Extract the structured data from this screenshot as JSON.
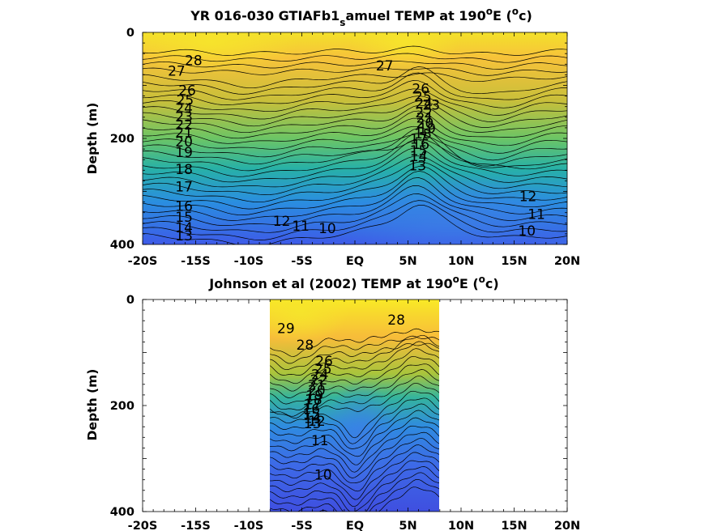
{
  "chart_data": [
    {
      "type": "heatmap",
      "title_main": "YR 016-030 GTIAFb1",
      "title_sub": "s",
      "title_rest": "amuel TEMP at 190",
      "title_sup": "o",
      "title_unit_open": "E (",
      "title_unit_sup": "o",
      "title_unit_close": "c)",
      "ylabel": "Depth (m)",
      "xlabel": "",
      "xlim": [
        -20,
        20
      ],
      "ylim": [
        0,
        400
      ],
      "y_reversed": true,
      "x_ticks": [
        -20,
        -15,
        -10,
        -5,
        0,
        5,
        10,
        15,
        20
      ],
      "x_tick_labels": [
        "-20S",
        "-15S",
        "-10S",
        "-5S",
        "EQ",
        "5N",
        "10N",
        "15N",
        "20N"
      ],
      "y_ticks": [
        0,
        200,
        400
      ],
      "y_tick_labels": [
        "0",
        "200",
        "400"
      ],
      "data_extent_lat": [
        -20,
        20
      ],
      "contour_labels": [
        {
          "text": "28",
          "lat": -15.2,
          "depth": 62
        },
        {
          "text": "27",
          "lat": -16.8,
          "depth": 82
        },
        {
          "text": "27",
          "lat": 2.8,
          "depth": 72
        },
        {
          "text": "26",
          "lat": -15.8,
          "depth": 118
        },
        {
          "text": "25",
          "lat": -16.0,
          "depth": 137
        },
        {
          "text": "24",
          "lat": -16.1,
          "depth": 152
        },
        {
          "text": "23",
          "lat": -16.1,
          "depth": 168
        },
        {
          "text": "22",
          "lat": -16.1,
          "depth": 183
        },
        {
          "text": "21",
          "lat": -16.1,
          "depth": 198
        },
        {
          "text": "20",
          "lat": -16.1,
          "depth": 215
        },
        {
          "text": "19",
          "lat": -16.1,
          "depth": 235
        },
        {
          "text": "18",
          "lat": -16.1,
          "depth": 267
        },
        {
          "text": "17",
          "lat": -16.1,
          "depth": 300
        },
        {
          "text": "16",
          "lat": -16.1,
          "depth": 337
        },
        {
          "text": "15",
          "lat": -16.1,
          "depth": 357
        },
        {
          "text": "14",
          "lat": -16.1,
          "depth": 377
        },
        {
          "text": "13",
          "lat": -16.1,
          "depth": 392
        },
        {
          "text": "26",
          "lat": 6.2,
          "depth": 115
        },
        {
          "text": "25",
          "lat": 6.4,
          "depth": 130
        },
        {
          "text": "24",
          "lat": 6.5,
          "depth": 143
        },
        {
          "text": "23",
          "lat": 7.2,
          "depth": 146
        },
        {
          "text": "22",
          "lat": 6.5,
          "depth": 160
        },
        {
          "text": "21",
          "lat": 6.6,
          "depth": 170
        },
        {
          "text": "20",
          "lat": 6.6,
          "depth": 180
        },
        {
          "text": "19",
          "lat": 6.8,
          "depth": 190
        },
        {
          "text": "18",
          "lat": 6.4,
          "depth": 200
        },
        {
          "text": "17",
          "lat": 6.0,
          "depth": 210
        },
        {
          "text": "16",
          "lat": 6.2,
          "depth": 220
        },
        {
          "text": "15",
          "lat": 6.0,
          "depth": 232
        },
        {
          "text": "14",
          "lat": 6.0,
          "depth": 243
        },
        {
          "text": "13",
          "lat": 5.9,
          "depth": 260
        },
        {
          "text": "12",
          "lat": 16.3,
          "depth": 318
        },
        {
          "text": "11",
          "lat": 17.1,
          "depth": 352
        },
        {
          "text": "10",
          "lat": 16.2,
          "depth": 383
        },
        {
          "text": "12",
          "lat": -6.9,
          "depth": 365
        },
        {
          "text": "11",
          "lat": -5.1,
          "depth": 374
        },
        {
          "text": "10",
          "lat": -2.6,
          "depth": 379
        }
      ]
    },
    {
      "type": "heatmap",
      "title_main": "Johnson et al (2002) TEMP at 190",
      "title_sub": "",
      "title_rest": "",
      "title_sup": "o",
      "title_unit_open": "E (",
      "title_unit_sup": "o",
      "title_unit_close": "c)",
      "ylabel": "Depth (m)",
      "xlabel": "",
      "xlim": [
        -20,
        20
      ],
      "ylim": [
        0,
        400
      ],
      "y_reversed": true,
      "x_ticks": [
        -20,
        -15,
        -10,
        -5,
        0,
        5,
        10,
        15,
        20
      ],
      "x_tick_labels": [
        "-20S",
        "-15S",
        "-10S",
        "-5S",
        "EQ",
        "5N",
        "10N",
        "15N",
        "20N"
      ],
      "y_ticks": [
        0,
        200,
        400
      ],
      "y_tick_labels": [
        "0",
        "200",
        "400"
      ],
      "data_extent_lat": [
        -8,
        8
      ],
      "contour_labels": [
        {
          "text": "29",
          "lat": -6.5,
          "depth": 63
        },
        {
          "text": "28",
          "lat": -4.7,
          "depth": 95
        },
        {
          "text": "28",
          "lat": 3.9,
          "depth": 47
        },
        {
          "text": "26",
          "lat": -2.9,
          "depth": 125
        },
        {
          "text": "25",
          "lat": -3.0,
          "depth": 140
        },
        {
          "text": "24",
          "lat": -3.3,
          "depth": 150
        },
        {
          "text": "22",
          "lat": -3.4,
          "depth": 160
        },
        {
          "text": "21",
          "lat": -3.6,
          "depth": 170
        },
        {
          "text": "20",
          "lat": -3.6,
          "depth": 180
        },
        {
          "text": "19",
          "lat": -3.8,
          "depth": 190
        },
        {
          "text": "18",
          "lat": -3.9,
          "depth": 198
        },
        {
          "text": "17",
          "lat": -4.0,
          "depth": 207
        },
        {
          "text": "16",
          "lat": -4.1,
          "depth": 215
        },
        {
          "text": "15",
          "lat": -4.1,
          "depth": 225
        },
        {
          "text": "14",
          "lat": -4.0,
          "depth": 233
        },
        {
          "text": "13",
          "lat": -4.0,
          "depth": 243
        },
        {
          "text": "12",
          "lat": -3.6,
          "depth": 238
        },
        {
          "text": "11",
          "lat": -3.3,
          "depth": 275
        },
        {
          "text": "10",
          "lat": -3.0,
          "depth": 340
        }
      ]
    }
  ]
}
